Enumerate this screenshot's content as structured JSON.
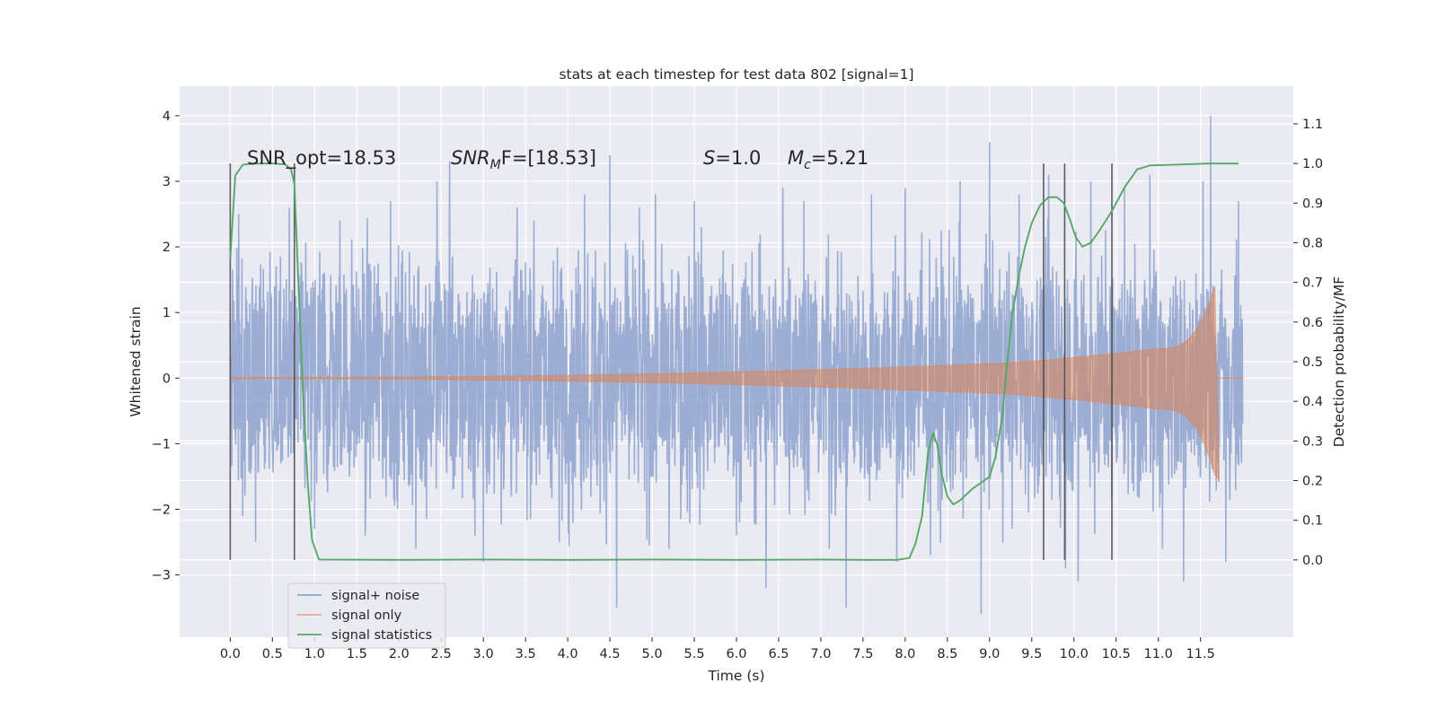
{
  "chart_data": {
    "type": "line",
    "title": "stats at each timestep for test data 802 [signal=1]",
    "xlabel": "Time (s)",
    "ylabel_left": "Whitened strain",
    "ylabel_right": "Detection probability/MF",
    "xlim": [
      -0.6,
      12.6
    ],
    "ylim_left": [
      -3.95,
      4.45
    ],
    "ylim_right": [
      -0.195,
      1.195
    ],
    "x_ticks": [
      "0.0",
      "0.5",
      "1.0",
      "1.5",
      "2.0",
      "2.5",
      "3.0",
      "3.5",
      "4.0",
      "4.5",
      "5.0",
      "5.5",
      "6.0",
      "6.5",
      "7.0",
      "7.5",
      "8.0",
      "8.5",
      "9.0",
      "9.5",
      "10.0",
      "10.5",
      "11.0",
      "11.5"
    ],
    "y_ticks_left": [
      "−3",
      "−2",
      "−1",
      "0",
      "1",
      "2",
      "3",
      "4"
    ],
    "y_ticks_right": [
      "0.0",
      "0.1",
      "0.2",
      "0.3",
      "0.4",
      "0.5",
      "0.6",
      "0.7",
      "0.8",
      "0.9",
      "1.0",
      "1.1"
    ],
    "annotations": {
      "snr_opt": "SNR_opt=18.53",
      "snr_mf_base": "SNR",
      "snr_mf_sub": "M",
      "snr_mf_rest": "F=[18.53]",
      "s_var": "S",
      "s_rest": "=1.0",
      "mc_var": "M",
      "mc_sub": "c",
      "mc_rest": "=5.21"
    },
    "vertical_lines_x": [
      0.0,
      0.76,
      9.64,
      9.89,
      10.45
    ],
    "legend": {
      "location": "lower-left",
      "entries": [
        "signal+ noise",
        "signal only",
        "signal statistics"
      ]
    },
    "series": [
      {
        "name": "signal+ noise",
        "color": "#8ea2cf",
        "x_range": [
          0.0,
          12.0
        ],
        "typical_envelope": [
          -1.9,
          2.0
        ],
        "peaks_x": [
          0.1,
          0.3,
          0.7,
          1.0,
          1.3,
          1.6,
          1.9,
          2.2,
          2.45,
          2.6,
          2.9,
          3.0,
          3.4,
          3.6,
          3.9,
          4.2,
          4.5,
          4.58,
          4.85,
          5.2,
          5.5,
          6.0,
          6.35,
          6.55,
          6.8,
          7.1,
          7.3,
          7.6,
          7.9,
          8.0,
          8.3,
          8.65,
          8.9,
          9.0,
          9.35,
          9.7,
          9.9,
          10.05,
          10.2,
          10.6,
          10.9,
          11.05,
          11.3,
          11.53,
          11.62,
          11.8,
          11.95
        ],
        "peaks_y": [
          2.5,
          -2.5,
          2.6,
          -2.3,
          2.4,
          -2.4,
          2.7,
          -2.6,
          3.0,
          3.3,
          -2.4,
          -2.8,
          2.6,
          2.4,
          -2.5,
          2.8,
          3.4,
          -3.5,
          2.6,
          -2.6,
          2.7,
          -2.4,
          -3.2,
          2.9,
          2.7,
          -2.6,
          -3.5,
          2.8,
          -2.8,
          2.9,
          -2.7,
          3.0,
          -3.6,
          3.6,
          2.8,
          3.1,
          -2.9,
          -3.1,
          3.0,
          2.9,
          3.1,
          -2.6,
          -3.1,
          3.0,
          4.0,
          -2.8,
          2.7
        ]
      },
      {
        "name": "signal only",
        "color": "#dd8452",
        "chirp_time": 11.67,
        "amplitude_at_0": 0.008,
        "amplitude_at_9": 0.22,
        "amplitude_at_11": 0.45,
        "amplitude_peak": 1.4
      },
      {
        "name": "signal statistics",
        "color": "#55a868",
        "axis": "right",
        "x": [
          0.0,
          0.06,
          0.15,
          0.3,
          0.5,
          0.65,
          0.72,
          0.76,
          0.8,
          0.86,
          0.92,
          0.97,
          1.05,
          2.0,
          3.0,
          4.0,
          5.0,
          6.0,
          7.0,
          7.5,
          7.9,
          8.05,
          8.12,
          8.2,
          8.27,
          8.33,
          8.38,
          8.43,
          8.5,
          8.57,
          8.65,
          8.8,
          9.0,
          9.07,
          9.15,
          9.2,
          9.27,
          9.35,
          9.42,
          9.5,
          9.6,
          9.7,
          9.8,
          9.88,
          9.95,
          10.02,
          10.1,
          10.2,
          10.3,
          10.45,
          10.6,
          10.75,
          10.9,
          11.2,
          11.6,
          11.95
        ],
        "y": [
          0.76,
          0.97,
          0.997,
          1.0,
          1.0,
          0.998,
          0.985,
          0.95,
          0.74,
          0.43,
          0.19,
          0.05,
          0.001,
          0.0,
          0.001,
          0.0,
          0.001,
          0.0,
          0.001,
          0.0,
          0.0,
          0.005,
          0.04,
          0.11,
          0.27,
          0.32,
          0.29,
          0.22,
          0.16,
          0.14,
          0.15,
          0.18,
          0.21,
          0.26,
          0.36,
          0.48,
          0.62,
          0.72,
          0.79,
          0.85,
          0.895,
          0.915,
          0.915,
          0.9,
          0.86,
          0.815,
          0.79,
          0.8,
          0.83,
          0.88,
          0.94,
          0.985,
          0.995,
          0.997,
          1.0,
          1.0
        ]
      }
    ]
  }
}
